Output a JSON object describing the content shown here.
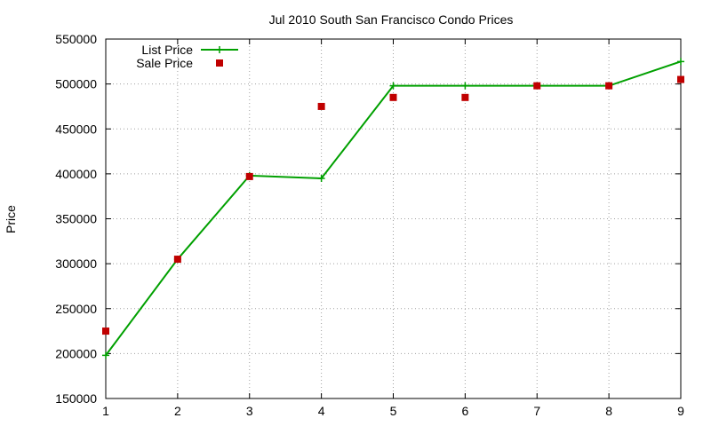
{
  "chart_data": {
    "type": "line",
    "title": "Jul 2010 South San Francisco Condo Prices",
    "xlabel": "",
    "ylabel": "Price",
    "xlim": [
      1,
      9
    ],
    "ylim": [
      150000,
      550000
    ],
    "x_ticks": [
      1,
      2,
      3,
      4,
      5,
      6,
      7,
      8,
      9
    ],
    "y_ticks": [
      150000,
      200000,
      250000,
      300000,
      350000,
      400000,
      450000,
      500000,
      550000
    ],
    "grid": true,
    "legend_position": "top-left",
    "series": [
      {
        "name": "List Price",
        "style": "line-with-plus-markers",
        "color": "#00a000",
        "x": [
          1,
          2,
          3,
          4,
          5,
          6,
          7,
          8,
          9
        ],
        "values": [
          198000,
          305000,
          398000,
          395000,
          498000,
          498000,
          498000,
          498000,
          525000
        ]
      },
      {
        "name": "Sale Price",
        "style": "square-markers",
        "color": "#c00000",
        "x": [
          1,
          2,
          3,
          4,
          5,
          6,
          7,
          8,
          9
        ],
        "values": [
          225000,
          305000,
          397000,
          475000,
          485000,
          485000,
          498000,
          498000,
          505000
        ]
      }
    ]
  }
}
